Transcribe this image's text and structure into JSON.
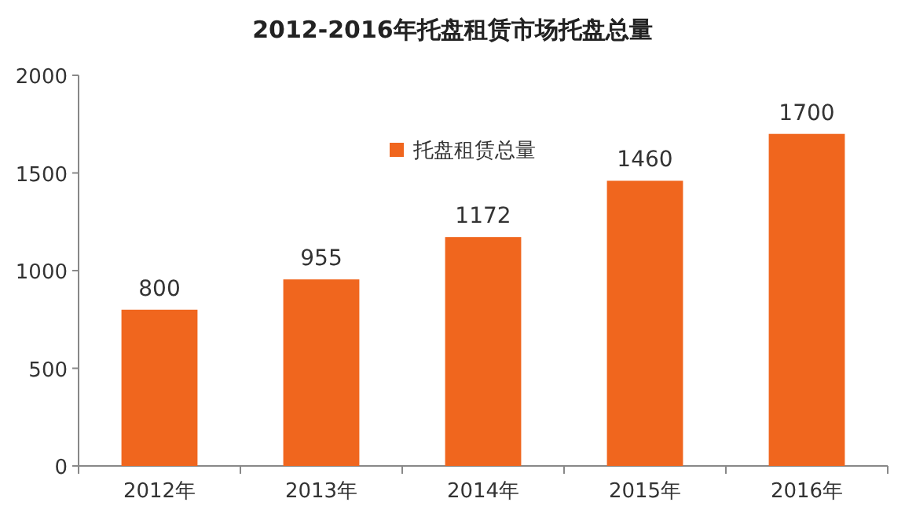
{
  "chart_data": {
    "type": "bar",
    "title": "2012-2016年托盘租赁市场托盘总量",
    "categories": [
      "2012年",
      "2013年",
      "2014年",
      "2015年",
      "2016年"
    ],
    "series": [
      {
        "name": "托盘租赁总量",
        "color": "#f0661e",
        "values": [
          800,
          955,
          1172,
          1460,
          1700
        ]
      }
    ],
    "ylim": [
      0,
      2000
    ],
    "yticks": [
      0,
      500,
      1000,
      1500,
      2000
    ],
    "data_labels": true,
    "legend": "top",
    "grid": false
  }
}
